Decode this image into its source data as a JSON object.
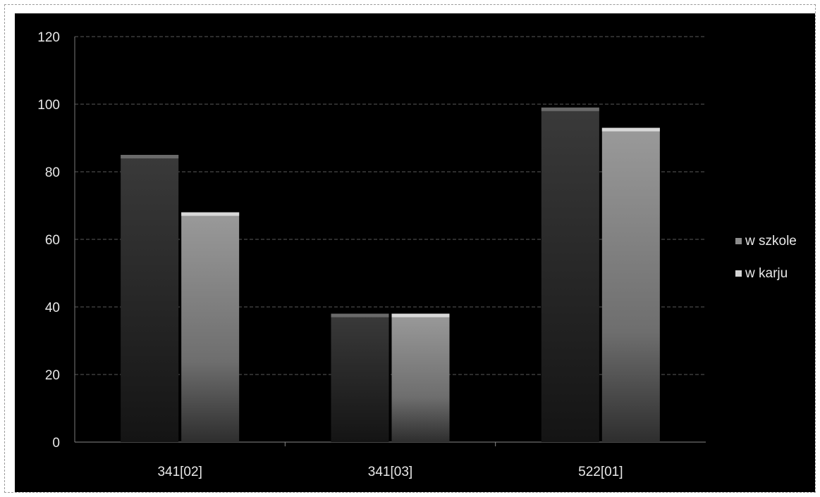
{
  "chart_data": {
    "type": "bar",
    "categories": [
      "341[02]",
      "341[03]",
      "522[01]"
    ],
    "series": [
      {
        "name": "w szkole",
        "values": [
          85,
          38,
          99
        ],
        "color": "#2b2b2b"
      },
      {
        "name": "w karju",
        "values": [
          68,
          38,
          93
        ],
        "color": "#8a8a8a"
      }
    ],
    "ylim": [
      0,
      120
    ],
    "yticks": [
      0,
      20,
      40,
      60,
      80,
      100,
      120
    ],
    "grid": true,
    "legend_position": "right",
    "background": "#000000",
    "title": "",
    "xlabel": "",
    "ylabel": ""
  }
}
